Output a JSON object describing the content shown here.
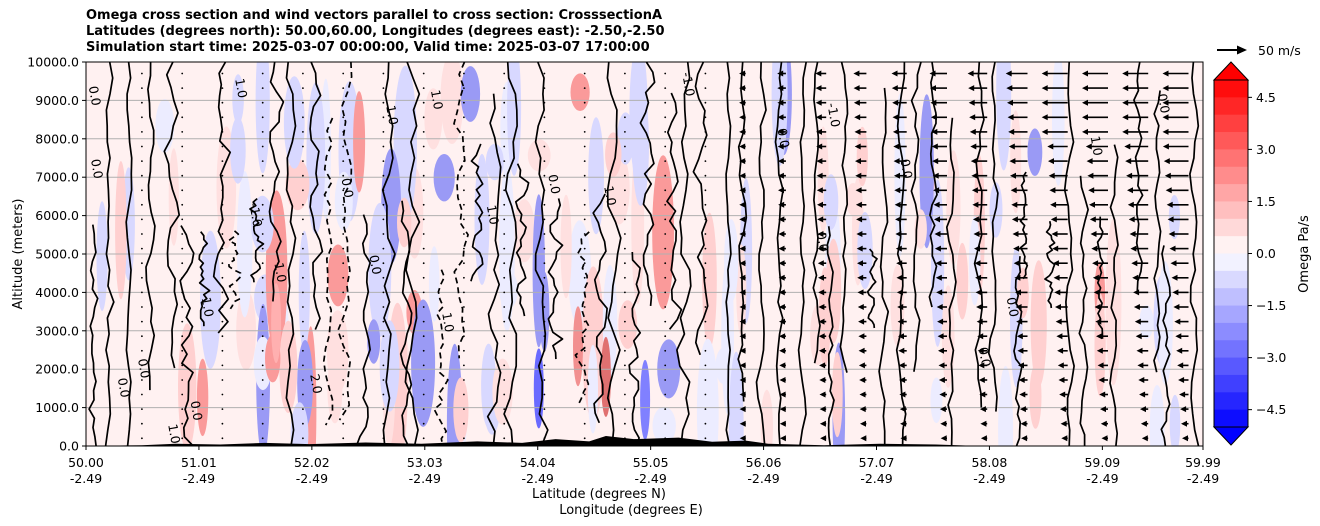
{
  "chart_data": {
    "type": "contour",
    "title_lines": [
      "Omega cross section and wind vectors parallel to cross section: CrosssectionA",
      "Latitudes (degrees north): 50.00,60.00, Longitudes (degrees east): -2.50,-2.50",
      "Simulation start time: 2025-03-07 00:00:00, Valid time: 2025-03-07 17:00:00"
    ],
    "ylabel": "Altitude (meters)",
    "xlabel_lat": "Latitude (degrees N)",
    "xlabel_lon": "Longitude (degrees E)",
    "ylim": [
      0,
      10000
    ],
    "y_ticks": [
      0,
      1000,
      2000,
      3000,
      4000,
      5000,
      6000,
      7000,
      8000,
      9000,
      10000
    ],
    "y_tick_labels": [
      "0.0",
      "1000.0",
      "2000.0",
      "3000.0",
      "4000.0",
      "5000.0",
      "6000.0",
      "7000.0",
      "8000.0",
      "9000.0",
      "10000.0"
    ],
    "xlim": [
      50.0,
      59.99
    ],
    "x_ticks_lat": [
      50.0,
      51.01,
      52.02,
      53.03,
      54.04,
      55.05,
      56.06,
      57.07,
      58.08,
      59.09,
      59.99
    ],
    "x_tick_labels_lat": [
      "50.00",
      "51.01",
      "52.02",
      "53.03",
      "54.04",
      "55.05",
      "56.06",
      "57.07",
      "58.08",
      "59.09",
      "59.99"
    ],
    "x_tick_labels_lon": [
      "-2.49",
      "-2.49",
      "-2.49",
      "-2.49",
      "-2.49",
      "-2.49",
      "-2.49",
      "-2.49",
      "-2.49",
      "-2.49",
      "-2.49"
    ],
    "grid": "horizontal",
    "colorbar": {
      "label": "Omega Pa/s",
      "range": [
        -5.0,
        5.0
      ],
      "ticks": [
        4.5,
        3.0,
        1.5,
        0.0,
        -1.5,
        -3.0,
        -4.5
      ],
      "tick_labels": [
        "4.5",
        "3.0",
        "1.5",
        "0.0",
        "−1.5",
        "−3.0",
        "−4.5"
      ],
      "extend": "both",
      "top_color": "#ff0000",
      "bottom_color": "#0000ff",
      "mid_color": "#ffffff"
    },
    "quiver_key": {
      "label": "50 m/s",
      "speed": 50
    },
    "contour_labels": [
      {
        "x": 50.06,
        "y": 7200,
        "text": "0.0"
      },
      {
        "x": 50.04,
        "y": 9100,
        "text": "0.0"
      },
      {
        "x": 50.3,
        "y": 1500,
        "text": "0.0"
      },
      {
        "x": 50.48,
        "y": 2000,
        "text": "0.0"
      },
      {
        "x": 50.75,
        "y": 300,
        "text": "1.0"
      },
      {
        "x": 50.95,
        "y": 900,
        "text": "0.0"
      },
      {
        "x": 51.05,
        "y": 3600,
        "text": "1.0"
      },
      {
        "x": 51.35,
        "y": 9300,
        "text": "1.0"
      },
      {
        "x": 51.48,
        "y": 6000,
        "text": "-1.0"
      },
      {
        "x": 51.7,
        "y": 4500,
        "text": "1.0"
      },
      {
        "x": 52.02,
        "y": 1600,
        "text": "2.0"
      },
      {
        "x": 52.3,
        "y": 6700,
        "text": "0.0"
      },
      {
        "x": 52.55,
        "y": 4700,
        "text": "0.0"
      },
      {
        "x": 52.7,
        "y": 8600,
        "text": "1.0"
      },
      {
        "x": 53.1,
        "y": 9000,
        "text": "1.0"
      },
      {
        "x": 53.2,
        "y": 3200,
        "text": "1.0"
      },
      {
        "x": 53.6,
        "y": 6000,
        "text": "1.0"
      },
      {
        "x": 54.15,
        "y": 6800,
        "text": "0.0"
      },
      {
        "x": 54.65,
        "y": 6500,
        "text": "1.0"
      },
      {
        "x": 55.35,
        "y": 9400,
        "text": "-1.0"
      },
      {
        "x": 56.2,
        "y": 8000,
        "text": "0.0"
      },
      {
        "x": 56.55,
        "y": 5300,
        "text": "0.0"
      },
      {
        "x": 56.65,
        "y": 8600,
        "text": "-1.0"
      },
      {
        "x": 57.3,
        "y": 7200,
        "text": "0.0"
      },
      {
        "x": 58.25,
        "y": 3600,
        "text": "0.0"
      },
      {
        "x": 58.0,
        "y": 2300,
        "text": "0.0"
      },
      {
        "x": 59.0,
        "y": 7800,
        "text": "1.0"
      },
      {
        "x": 59.6,
        "y": 8900,
        "text": "0.0"
      }
    ]
  }
}
